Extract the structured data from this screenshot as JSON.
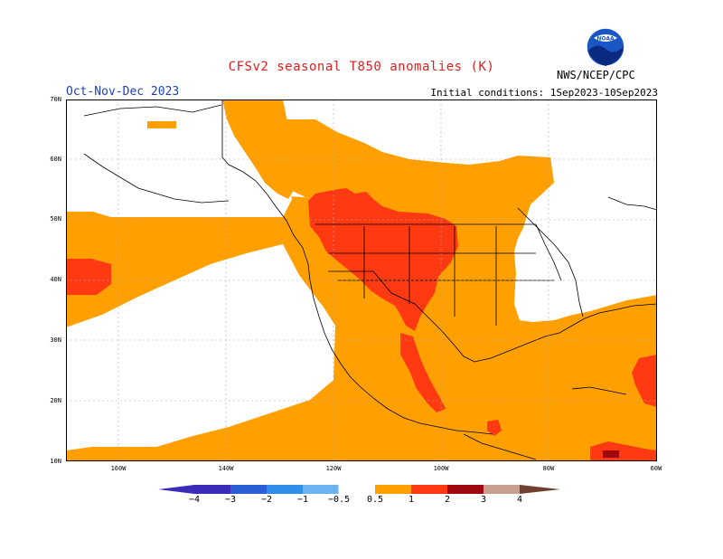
{
  "title": "CFSv2 seasonal T850 anomalies (K)",
  "season": "Oct-Nov-Dec 2023",
  "initial_conditions": "Initial conditions: 1Sep2023-10Sep2023",
  "agency": "NWS/NCEP/CPC",
  "logo_text": "NOAA",
  "lat_labels": [
    "70N",
    "60N",
    "50N",
    "40N",
    "30N",
    "20N",
    "10N"
  ],
  "lon_labels": [
    "160W",
    "140W",
    "120W",
    "100W",
    "80W",
    "60W"
  ],
  "colorbar": {
    "labels": [
      "−4",
      "−3",
      "−2",
      "−1",
      "−0.5",
      "0.5",
      "1",
      "2",
      "3",
      "4"
    ],
    "colors": [
      "#3a2bb8",
      "#2a5fd8",
      "#2f8fe8",
      "#6cb4f0",
      "#ffffff",
      "#ffa000",
      "#ff3a12",
      "#a00810",
      "#c8a090",
      "#704030"
    ]
  },
  "map_colors": {
    "neutral": "#ffffff",
    "anom_0_5_to_1": "#ffa000",
    "anom_1_to_2": "#ff3a12",
    "anom_2_to_3": "#a00810"
  }
}
